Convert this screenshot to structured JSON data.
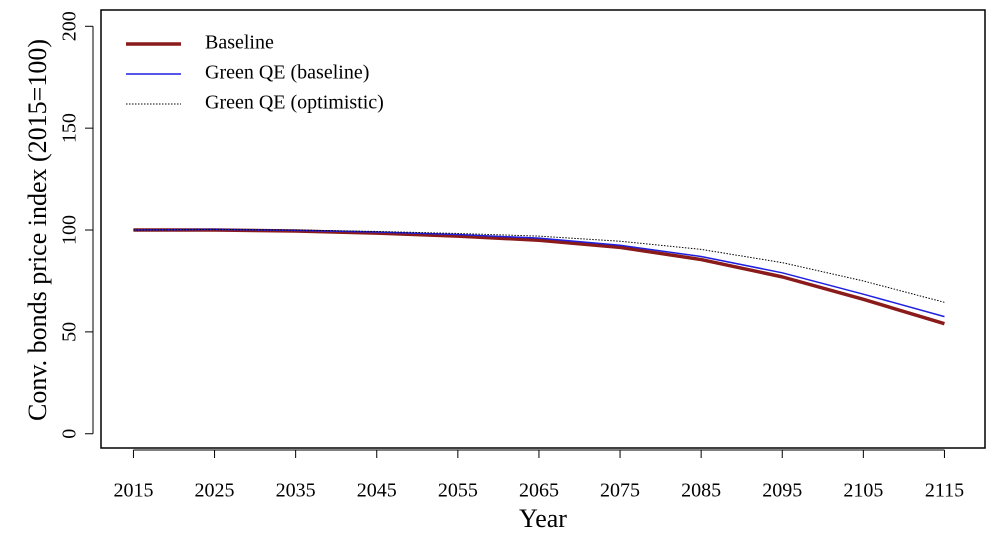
{
  "chart_data": {
    "type": "line",
    "x": [
      2015,
      2025,
      2035,
      2045,
      2055,
      2065,
      2075,
      2085,
      2095,
      2105,
      2115
    ],
    "series": [
      {
        "name": "Baseline",
        "color": "#8b1a1a",
        "width": 3.5,
        "dash": "solid",
        "values": [
          100,
          100,
          99.5,
          98.5,
          97,
          95,
          91.5,
          85.5,
          77,
          66,
          54
        ]
      },
      {
        "name": "Green QE (baseline)",
        "color": "#1f1fe0",
        "width": 1.5,
        "dash": "solid",
        "values": [
          100,
          100.3,
          99.8,
          99,
          97.8,
          96,
          92.5,
          87,
          79,
          68.5,
          57.5
        ]
      },
      {
        "name": "Green QE (optimistic)",
        "color": "#000000",
        "width": 1,
        "dash": "dotted",
        "values": [
          100,
          100.3,
          100,
          99.3,
          98.3,
          97,
          94.5,
          90.5,
          84,
          75,
          64.5
        ]
      }
    ],
    "x_label": "Year",
    "y_label": "Conv. bonds price index (2015=100)",
    "xlim": [
      2011,
      2120
    ],
    "ylim": [
      -7,
      208
    ],
    "xticks": [
      2015,
      2025,
      2035,
      2045,
      2055,
      2065,
      2075,
      2085,
      2095,
      2105,
      2115
    ],
    "yticks": [
      0,
      50,
      100,
      150,
      200
    ],
    "legend": "top-left"
  }
}
